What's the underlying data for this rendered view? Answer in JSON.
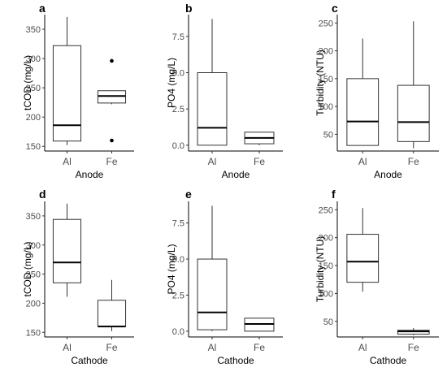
{
  "chart_data": [
    {
      "type": "box",
      "panel_label": "a",
      "xlabel": "Anode",
      "ylabel": "tCOD (mg/L)",
      "ylim": [
        142,
        375
      ],
      "yticks": [
        150,
        200,
        250,
        300,
        350
      ],
      "categories": [
        "Al",
        "Fe"
      ],
      "boxes": [
        {
          "category": "Al",
          "min": 152,
          "q1": 159,
          "median": 186,
          "q3": 322,
          "max": 371,
          "outliers": []
        },
        {
          "category": "Fe",
          "min": 222,
          "q1": 224,
          "median": 236,
          "q3": 245,
          "max": 245,
          "outliers": [
            296,
            160
          ]
        }
      ]
    },
    {
      "type": "box",
      "panel_label": "b",
      "xlabel": "Anode",
      "ylabel": "PO4 (mg/L)",
      "ylim": [
        -0.4,
        9.0
      ],
      "yticks": [
        0.0,
        2.5,
        5.0,
        7.5
      ],
      "ytick_labels": [
        "0.0",
        "2.5",
        "5.0",
        "7.5"
      ],
      "categories": [
        "Al",
        "Fe"
      ],
      "boxes": [
        {
          "category": "Al",
          "min": 0.0,
          "q1": 0.0,
          "median": 1.2,
          "q3": 5.0,
          "max": 8.7,
          "outliers": []
        },
        {
          "category": "Fe",
          "min": 0.0,
          "q1": 0.1,
          "median": 0.5,
          "q3": 0.9,
          "max": 0.9,
          "outliers": []
        }
      ]
    },
    {
      "type": "box",
      "panel_label": "c",
      "xlabel": "Anode",
      "ylabel": "Turbidity (NTU)",
      "ylim": [
        20,
        265
      ],
      "yticks": [
        50,
        100,
        150,
        200,
        250
      ],
      "categories": [
        "Al",
        "Fe"
      ],
      "boxes": [
        {
          "category": "Al",
          "min": 30,
          "q1": 30,
          "median": 73,
          "q3": 150,
          "max": 222,
          "outliers": []
        },
        {
          "category": "Fe",
          "min": 25,
          "q1": 37,
          "median": 72,
          "q3": 138,
          "max": 253,
          "outliers": []
        }
      ]
    },
    {
      "type": "box",
      "panel_label": "d",
      "xlabel": "Cathode",
      "ylabel": "tCOD (mg/L)",
      "ylim": [
        142,
        375
      ],
      "yticks": [
        150,
        200,
        250,
        300,
        350
      ],
      "categories": [
        "Al",
        "Fe"
      ],
      "boxes": [
        {
          "category": "Al",
          "min": 211,
          "q1": 235,
          "median": 270,
          "q3": 344,
          "max": 371,
          "outliers": []
        },
        {
          "category": "Fe",
          "min": 152,
          "q1": 160,
          "median": 160,
          "q3": 205,
          "max": 240,
          "outliers": []
        }
      ]
    },
    {
      "type": "box",
      "panel_label": "e",
      "xlabel": "Cathode",
      "ylabel": "PO4 (mg/L)",
      "ylim": [
        -0.4,
        9.0
      ],
      "yticks": [
        0.0,
        2.5,
        5.0,
        7.5
      ],
      "ytick_labels": [
        "0.0",
        "2.5",
        "5.0",
        "7.5"
      ],
      "categories": [
        "Al",
        "Fe"
      ],
      "boxes": [
        {
          "category": "Al",
          "min": 0.0,
          "q1": 0.1,
          "median": 1.3,
          "q3": 5.0,
          "max": 8.7,
          "outliers": []
        },
        {
          "category": "Fe",
          "min": 0.0,
          "q1": 0.0,
          "median": 0.5,
          "q3": 0.9,
          "max": 0.9,
          "outliers": []
        }
      ]
    },
    {
      "type": "box",
      "panel_label": "f",
      "xlabel": "Cathode",
      "ylabel": "Turbidity (NTU)",
      "ylim": [
        22,
        265
      ],
      "yticks": [
        50,
        100,
        150,
        200,
        250
      ],
      "categories": [
        "Al",
        "Fe"
      ],
      "boxes": [
        {
          "category": "Al",
          "min": 103,
          "q1": 120,
          "median": 157,
          "q3": 206,
          "max": 253,
          "outliers": []
        },
        {
          "category": "Fe",
          "min": 25,
          "q1": 27,
          "median": 32,
          "q3": 34,
          "max": 38,
          "outliers": []
        }
      ]
    }
  ]
}
